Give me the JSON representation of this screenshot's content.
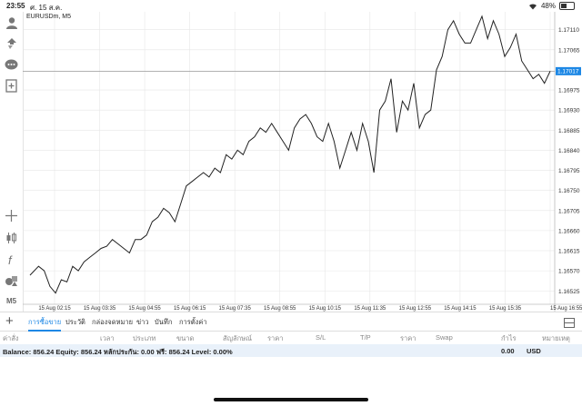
{
  "status": {
    "time": "23:55",
    "date": "ศ. 15 ส.ค.",
    "battery": "48%",
    "battery_level": 0.48
  },
  "chart_title": "EURUSDm, M5",
  "current_price_label": "1.17017",
  "sidebar": {
    "icons": [
      "account-icon",
      "trade-icon",
      "chat-icon",
      "new-order-icon",
      "crosshair-icon",
      "candlestick-icon",
      "indicator-f-icon",
      "objects-icon"
    ],
    "timeframe": "M5"
  },
  "chart_data": {
    "type": "line",
    "symbol": "EURUSDm",
    "timeframe": "M5",
    "x_ticks": [
      "15 Aug 02:15",
      "15 Aug 03:35",
      "15 Aug 04:55",
      "15 Aug 06:15",
      "15 Aug 07:35",
      "15 Aug 08:55",
      "15 Aug 10:15",
      "15 Aug 11:35",
      "15 Aug 12:55",
      "15 Aug 14:15",
      "15 Aug 15:35",
      "15 Aug 16:55"
    ],
    "y_ticks": [
      1.1711,
      1.17065,
      1.16975,
      1.1693,
      1.16885,
      1.1684,
      1.16795,
      1.1675,
      1.16705,
      1.1666,
      1.16615,
      1.1657,
      1.16525
    ],
    "y_tick_labels": [
      "1.17110",
      "1.17065",
      "1.16975",
      "1.16930",
      "1.16885",
      "1.16840",
      "1.16795",
      "1.16750",
      "1.16705",
      "1.16660",
      "1.16615",
      "1.16570",
      "1.16525"
    ],
    "ylim": [
      1.16495,
      1.1715
    ],
    "current_price": 1.17017,
    "grid": true,
    "x": [
      0,
      3,
      5,
      7,
      9,
      11,
      13,
      15,
      17,
      19,
      21,
      23,
      25,
      27,
      29,
      31,
      33,
      35,
      37,
      39,
      41,
      43,
      45,
      47,
      49,
      51,
      53,
      55,
      57,
      59,
      61,
      63,
      65,
      67,
      69,
      71,
      73,
      75,
      77,
      79,
      81,
      83,
      85,
      87,
      89,
      91,
      93,
      95,
      97,
      99,
      101,
      103,
      105,
      107,
      109,
      111,
      113,
      115,
      117,
      119,
      121,
      123,
      125,
      127,
      129,
      131,
      133,
      135,
      137,
      139,
      141,
      143,
      145,
      147,
      149,
      151,
      153,
      155,
      157,
      159,
      161,
      163,
      165,
      167,
      169,
      171,
      173,
      175,
      177,
      179,
      181,
      183
    ],
    "values": [
      1.1656,
      1.1658,
      1.1657,
      1.16535,
      1.1652,
      1.1655,
      1.16545,
      1.1658,
      1.1657,
      1.1659,
      1.166,
      1.1661,
      1.1662,
      1.16625,
      1.1664,
      1.1663,
      1.1662,
      1.1661,
      1.1664,
      1.1664,
      1.1665,
      1.1668,
      1.1669,
      1.1671,
      1.167,
      1.1668,
      1.1672,
      1.1676,
      1.1677,
      1.1678,
      1.1679,
      1.1678,
      1.168,
      1.1679,
      1.1683,
      1.1682,
      1.1684,
      1.1683,
      1.1686,
      1.1687,
      1.1689,
      1.1688,
      1.169,
      1.1688,
      1.1686,
      1.1684,
      1.1689,
      1.1691,
      1.1692,
      1.169,
      1.1687,
      1.1686,
      1.169,
      1.1686,
      1.168,
      1.1684,
      1.1688,
      1.1684,
      1.169,
      1.1686,
      1.1679,
      1.1693,
      1.1695,
      1.17,
      1.1688,
      1.1695,
      1.1693,
      1.1699,
      1.1689,
      1.1692,
      1.1693,
      1.1702,
      1.1705,
      1.1711,
      1.1713,
      1.171,
      1.1708,
      1.1708,
      1.1711,
      1.1714,
      1.1709,
      1.1713,
      1.171,
      1.1705,
      1.1707,
      1.171,
      1.1704,
      1.1702,
      1.17,
      1.1701,
      1.1699,
      1.17017
    ]
  },
  "tabs": [
    "การซื้อขาย",
    "ประวัติ",
    "กล่องจดหมาย",
    "ข่าว",
    "บันทึก",
    "การตั้งค่า"
  ],
  "columns": [
    "ค่าสั่ง",
    "เวลา",
    "ประเภท",
    "ขนาด",
    "สัญลักษณ์",
    "ราคา",
    "S/L",
    "T/P",
    "ราคา",
    "Swap",
    "กำไร",
    "หมายเหตุ"
  ],
  "balance": {
    "text": "Balance: 856.24 Equity: 856.24 หลักประกัน: 0.00 ฟรี: 856.24 Level: 0.00%",
    "total": "0.00",
    "currency": "USD"
  },
  "colors": {
    "accent": "#1e88e5",
    "price_line": "#222222",
    "price_tag": "#1e88e5",
    "grid": "#e6e6e6",
    "balance_bg": "#e9f1fa"
  }
}
